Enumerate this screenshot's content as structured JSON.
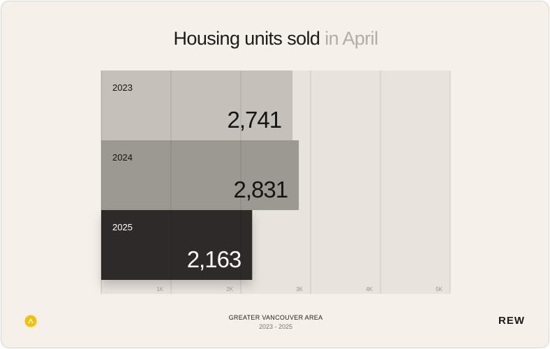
{
  "title": {
    "main": "Housing units sold",
    "accent": "in April"
  },
  "chart_data": {
    "type": "bar",
    "orientation": "horizontal",
    "categories": [
      "2023",
      "2024",
      "2025"
    ],
    "values": [
      2741,
      2831,
      2163
    ],
    "value_labels": [
      "2,741",
      "2,831",
      "2,163"
    ],
    "x_ticks": [
      1000,
      2000,
      3000,
      4000,
      5000
    ],
    "x_tick_labels": [
      "1K",
      "2K",
      "3K",
      "4K",
      "5K"
    ],
    "xlim": [
      0,
      5000
    ],
    "grid": true,
    "bar_colors": [
      "#c5c0b9",
      "#9c9892",
      "#2d2c2b"
    ],
    "label_colors": [
      "#141414",
      "#141414",
      "#ffffff"
    ],
    "title": "Housing units sold in April",
    "xlabel": "",
    "ylabel": ""
  },
  "footer": {
    "region": "GREATER VANCOUVER AREA",
    "years": "2023 - 2025",
    "brand": "REW",
    "logo_icon": "rew-logo-icon"
  }
}
